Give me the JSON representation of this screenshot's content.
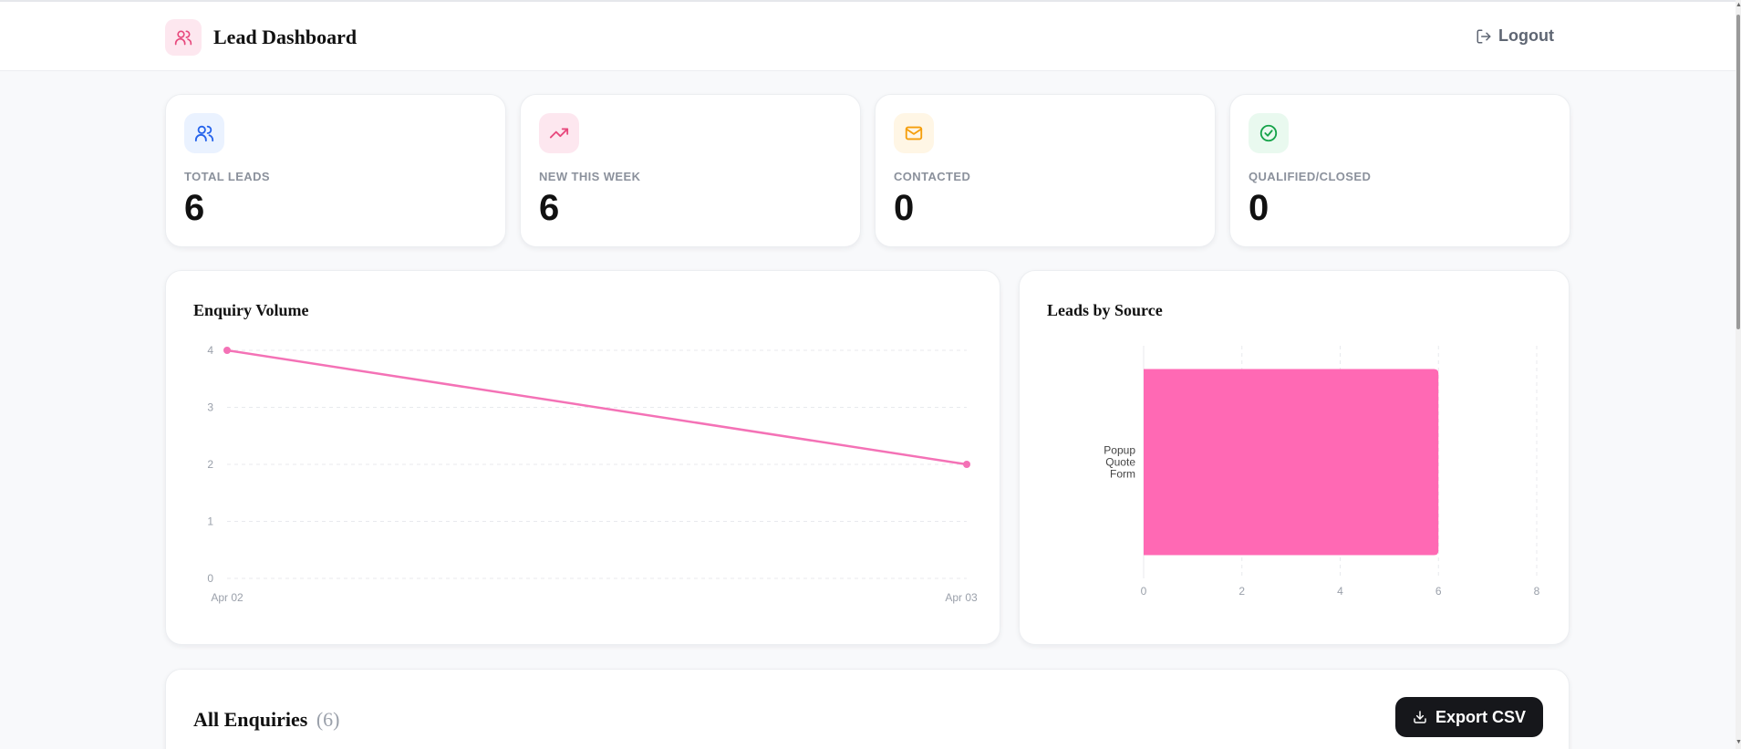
{
  "header": {
    "title": "Lead Dashboard",
    "brand_icon": "users-icon",
    "logout_label": "Logout",
    "logout_icon": "logout-icon"
  },
  "stats": [
    {
      "label": "TOTAL LEADS",
      "value": "6",
      "icon": "users-icon",
      "icon_bg": "#eaf2ff",
      "icon_color": "#2563eb"
    },
    {
      "label": "NEW THIS WEEK",
      "value": "6",
      "icon": "trending-up-icon",
      "icon_bg": "#fde7ef",
      "icon_color": "#e7497d"
    },
    {
      "label": "CONTACTED",
      "value": "0",
      "icon": "mail-icon",
      "icon_bg": "#fff6e5",
      "icon_color": "#f59e0b"
    },
    {
      "label": "QUALIFIED/CLOSED",
      "value": "0",
      "icon": "check-circle-icon",
      "icon_bg": "#e9f9ef",
      "icon_color": "#16a34a"
    }
  ],
  "charts": {
    "enquiry_title": "Enquiry Volume",
    "source_title": "Leads by Source"
  },
  "chart_data": [
    {
      "type": "line",
      "title": "Enquiry Volume",
      "x": [
        "Apr 02",
        "Apr 03"
      ],
      "series": [
        {
          "values": [
            4,
            2
          ]
        }
      ],
      "yticks": [
        "0",
        "1",
        "2",
        "3",
        "4"
      ],
      "ylim": [
        0,
        4
      ],
      "grid": true,
      "color": "#f472b6"
    },
    {
      "type": "bar",
      "orientation": "horizontal",
      "title": "Leads by Source",
      "categories": [
        "Popup Quote Form"
      ],
      "category_lines": [
        "Popup",
        "Quote",
        "Form"
      ],
      "values": [
        6
      ],
      "xticks": [
        "0",
        "2",
        "4",
        "6",
        "8"
      ],
      "xlim": [
        0,
        8
      ],
      "grid": true,
      "color": "#ff69b4"
    }
  ],
  "enquiries": {
    "title": "All Enquiries",
    "count": "(6)",
    "export_label": "Export CSV",
    "export_icon": "download-icon"
  },
  "colors": {
    "accent": "#ff69b4",
    "button_dark": "#16171b"
  }
}
